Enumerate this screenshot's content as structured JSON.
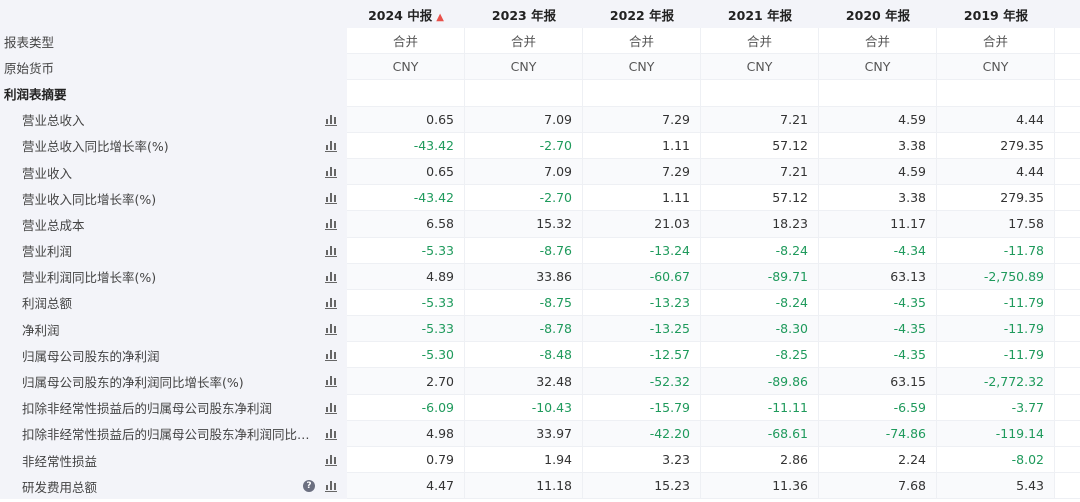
{
  "columns": [
    "2024 中报",
    "2023 年报",
    "2022 年报",
    "2021 年报",
    "2020 年报",
    "2019 年报"
  ],
  "accent_negative": "#1f9a5c",
  "rows": [
    {
      "label": "报表类型",
      "type": "meta",
      "values": [
        "合并",
        "合并",
        "合并",
        "合并",
        "合并",
        "合并"
      ]
    },
    {
      "label": "原始货币",
      "type": "meta",
      "values": [
        "CNY",
        "CNY",
        "CNY",
        "CNY",
        "CNY",
        "CNY"
      ]
    },
    {
      "label": "利润表摘要",
      "type": "section",
      "values": []
    },
    {
      "label": "营业总收入",
      "values": [
        "0.65",
        "7.09",
        "7.29",
        "7.21",
        "4.59",
        "4.44"
      ]
    },
    {
      "label": "营业总收入同比增长率(%)",
      "values": [
        "-43.42",
        "-2.70",
        "1.11",
        "57.12",
        "3.38",
        "279.35"
      ]
    },
    {
      "label": "营业收入",
      "values": [
        "0.65",
        "7.09",
        "7.29",
        "7.21",
        "4.59",
        "4.44"
      ]
    },
    {
      "label": "营业收入同比增长率(%)",
      "values": [
        "-43.42",
        "-2.70",
        "1.11",
        "57.12",
        "3.38",
        "279.35"
      ]
    },
    {
      "label": "营业总成本",
      "values": [
        "6.58",
        "15.32",
        "21.03",
        "18.23",
        "11.17",
        "17.58"
      ]
    },
    {
      "label": "营业利润",
      "values": [
        "-5.33",
        "-8.76",
        "-13.24",
        "-8.24",
        "-4.34",
        "-11.78"
      ]
    },
    {
      "label": "营业利润同比增长率(%)",
      "values": [
        "4.89",
        "33.86",
        "-60.67",
        "-89.71",
        "63.13",
        "-2,750.89"
      ]
    },
    {
      "label": "利润总额",
      "values": [
        "-5.33",
        "-8.75",
        "-13.23",
        "-8.24",
        "-4.35",
        "-11.79"
      ]
    },
    {
      "label": "净利润",
      "values": [
        "-5.33",
        "-8.78",
        "-13.25",
        "-8.30",
        "-4.35",
        "-11.79"
      ]
    },
    {
      "label": "归属母公司股东的净利润",
      "values": [
        "-5.30",
        "-8.48",
        "-12.57",
        "-8.25",
        "-4.35",
        "-11.79"
      ]
    },
    {
      "label": "归属母公司股东的净利润同比增长率(%)",
      "values": [
        "2.70",
        "32.48",
        "-52.32",
        "-89.86",
        "63.15",
        "-2,772.32"
      ]
    },
    {
      "label": "扣除非经常性损益后的归属母公司股东净利润",
      "values": [
        "-6.09",
        "-10.43",
        "-15.79",
        "-11.11",
        "-6.59",
        "-3.77"
      ]
    },
    {
      "label": "扣除非经常性损益后的归属母公司股东净利润同比增...",
      "values": [
        "4.98",
        "33.97",
        "-42.20",
        "-68.61",
        "-74.86",
        "-119.14"
      ]
    },
    {
      "label": "非经常性损益",
      "values": [
        "0.79",
        "1.94",
        "3.23",
        "2.86",
        "2.24",
        "-8.02"
      ]
    },
    {
      "label": "研发费用总额",
      "help": "?",
      "values": [
        "4.47",
        "11.18",
        "15.23",
        "11.36",
        "7.68",
        "5.43"
      ]
    }
  ]
}
